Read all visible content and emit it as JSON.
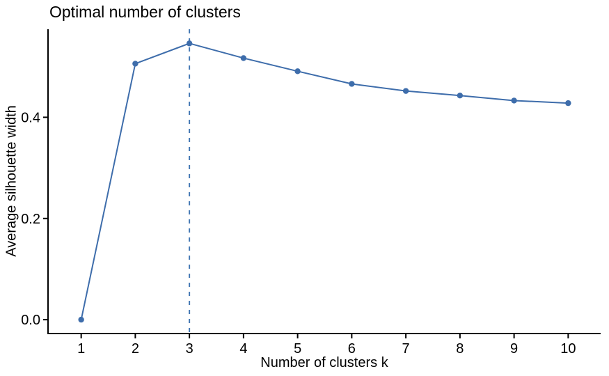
{
  "chart_data": {
    "type": "line",
    "title": "Optimal number of clusters",
    "xlabel": "Number of clusters k",
    "ylabel": "Average silhouette width",
    "x": [
      1,
      2,
      3,
      4,
      5,
      6,
      7,
      8,
      9,
      10
    ],
    "values": [
      0.0,
      0.506,
      0.546,
      0.517,
      0.491,
      0.466,
      0.452,
      0.443,
      0.433,
      0.428
    ],
    "series_name": "Average silhouette width",
    "optimal_k": 3,
    "vline_x": 3,
    "xticks": [
      {
        "v": 1,
        "label": "1"
      },
      {
        "v": 2,
        "label": "2"
      },
      {
        "v": 3,
        "label": "3"
      },
      {
        "v": 4,
        "label": "4"
      },
      {
        "v": 5,
        "label": "5"
      },
      {
        "v": 6,
        "label": "6"
      },
      {
        "v": 7,
        "label": "7"
      },
      {
        "v": 8,
        "label": "8"
      },
      {
        "v": 9,
        "label": "9"
      },
      {
        "v": 10,
        "label": "10"
      }
    ],
    "yticks": [
      {
        "v": 0.0,
        "label": "0.0"
      },
      {
        "v": 0.2,
        "label": "0.2"
      },
      {
        "v": 0.4,
        "label": "0.4"
      }
    ],
    "xlim": [
      0.4,
      10.6
    ],
    "ylim": [
      -0.026,
      0.574
    ],
    "grid": false,
    "legend_position": "none",
    "line_color": "#3E6DAB",
    "point_color": "#3E6DAB",
    "vline_color": "#4478B4",
    "axis_color": "#000000",
    "text_color": "#000000",
    "background_color": "#ffffff"
  }
}
